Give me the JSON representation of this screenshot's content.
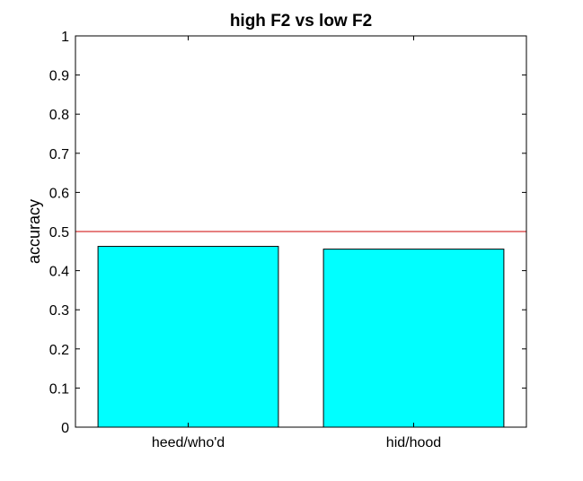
{
  "chart_data": {
    "type": "bar",
    "title": "high F2 vs low F2",
    "xlabel": "",
    "ylabel": "accuracy",
    "categories": [
      "heed/who'd",
      "hid/hood"
    ],
    "values": [
      0.462,
      0.455
    ],
    "ylim": [
      0,
      1
    ],
    "yticks": [
      0,
      0.1,
      0.2,
      0.3,
      0.4,
      0.5,
      0.6,
      0.7,
      0.8,
      0.9,
      1
    ],
    "ytick_labels": [
      "0",
      "0.1",
      "0.2",
      "0.3",
      "0.4",
      "0.5",
      "0.6",
      "0.7",
      "0.8",
      "0.9",
      "1"
    ],
    "reference_line": {
      "y": 0.5,
      "color": "#cc0000"
    },
    "bar_color": "#00ffff",
    "bar_edge_color": "#000000",
    "grid": false,
    "legend": "none"
  }
}
